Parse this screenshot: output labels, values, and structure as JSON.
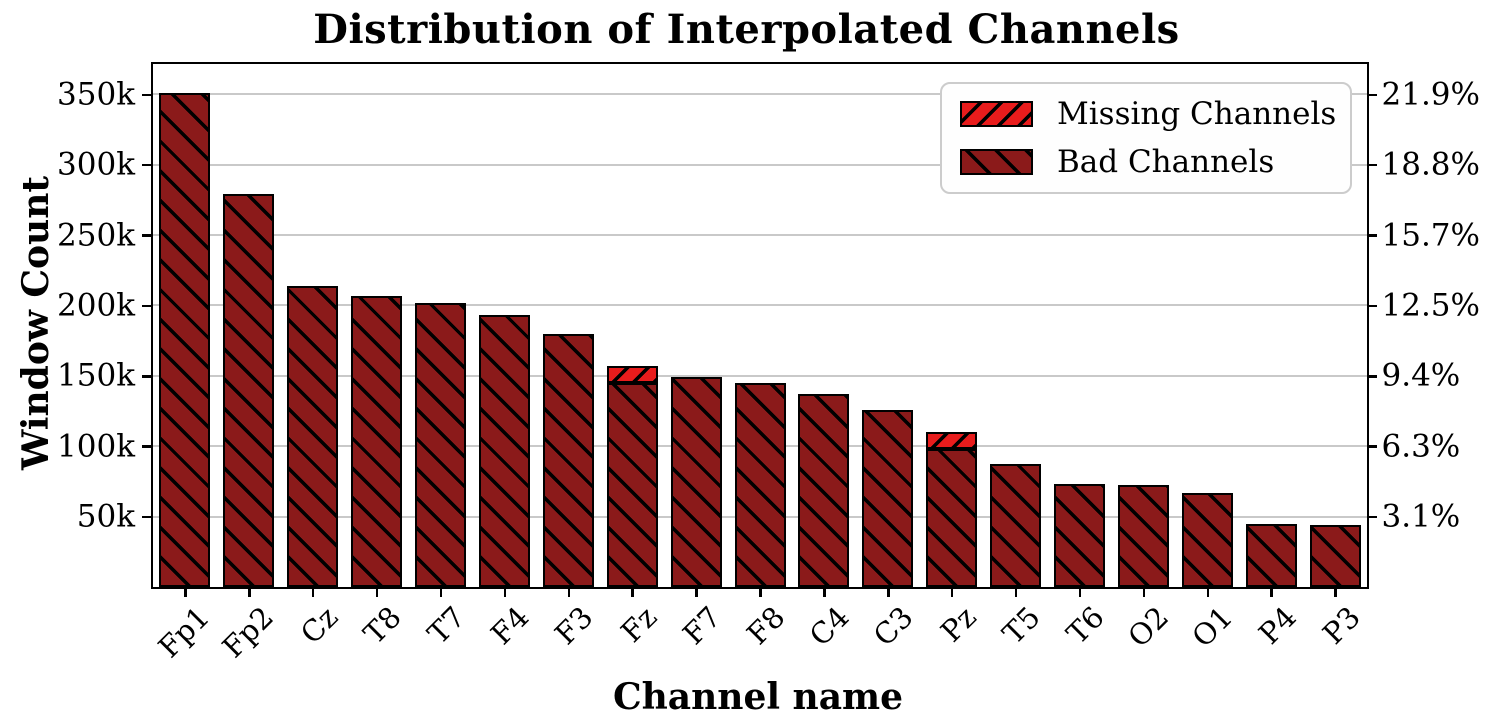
{
  "title": "Distribution of Interpolated Channels",
  "chart_data": {
    "type": "bar",
    "stacked": true,
    "title": "Distribution of Interpolated Channels",
    "xlabel": "Channel name",
    "ylabel": "Window Count",
    "categories": [
      "Fp1",
      "Fp2",
      "Cz",
      "T8",
      "T7",
      "F4",
      "F3",
      "Fz",
      "F7",
      "F8",
      "C4",
      "C3",
      "Pz",
      "T5",
      "T6",
      "O2",
      "O1",
      "P4",
      "P3"
    ],
    "series": [
      {
        "name": "Bad Channels",
        "color": "#8b1a1a",
        "hatch": "\\",
        "values": [
          351000,
          279000,
          214000,
          207000,
          202000,
          193000,
          180000,
          145000,
          149000,
          145000,
          137000,
          126000,
          98000,
          87500,
          73000,
          72500,
          66500,
          45000,
          44000
        ]
      },
      {
        "name": "Missing Channels",
        "color": "#e81c1c",
        "hatch": "/",
        "values": [
          0,
          0,
          0,
          0,
          0,
          0,
          0,
          12000,
          0,
          0,
          0,
          0,
          12000,
          0,
          0,
          0,
          0,
          0,
          0
        ]
      }
    ],
    "ylim": [
      0,
      371500
    ],
    "grid": "horizontal-only",
    "gridline_color": "#c9c9c9",
    "y_tick_values": [
      50000,
      100000,
      150000,
      200000,
      250000,
      300000,
      350000
    ],
    "y_ticks_left": [
      "50k",
      "100k",
      "150k",
      "200k",
      "250k",
      "300k",
      "350k"
    ],
    "y_ticks_right": [
      "3.1%",
      "6.3%",
      "9.4%",
      "12.5%",
      "15.7%",
      "18.8%",
      "21.9%"
    ],
    "legend": {
      "position": "upper right",
      "entries": [
        {
          "label": "Missing Channels",
          "color": "#e81c1c",
          "hatch": "/"
        },
        {
          "label": "Bad Channels",
          "color": "#8b1a1a",
          "hatch": "\\"
        }
      ]
    }
  }
}
